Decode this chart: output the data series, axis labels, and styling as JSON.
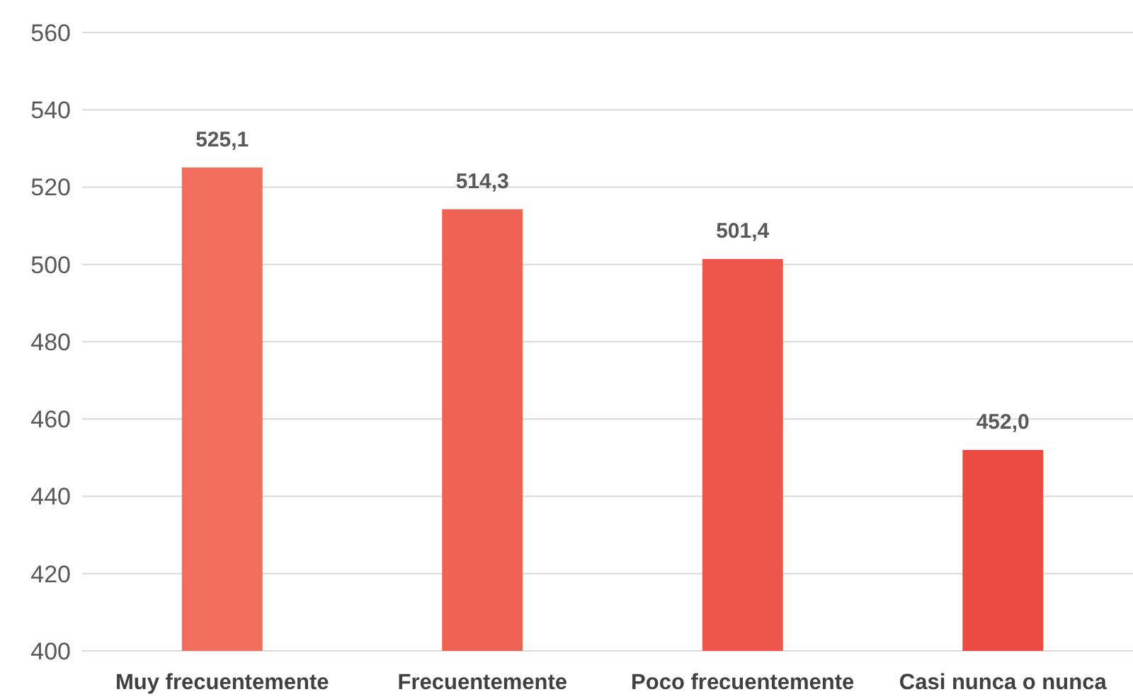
{
  "chart_data": {
    "type": "bar",
    "categories": [
      "Muy frecuentemente",
      "Frecuentemente",
      "Poco frecuentemente",
      "Casi nunca o nunca"
    ],
    "values": [
      525.1,
      514.3,
      501.4,
      452.0
    ],
    "colors": [
      "#f06e5c",
      "#ee6352",
      "#ec5547",
      "#ea4a40"
    ],
    "value_labels": [
      "525,1",
      "514,3",
      "501,4",
      "452,0"
    ],
    "ylim": [
      400,
      560
    ],
    "yticks": [
      400,
      420,
      440,
      460,
      480,
      500,
      520,
      540,
      560
    ],
    "grid": "y"
  }
}
